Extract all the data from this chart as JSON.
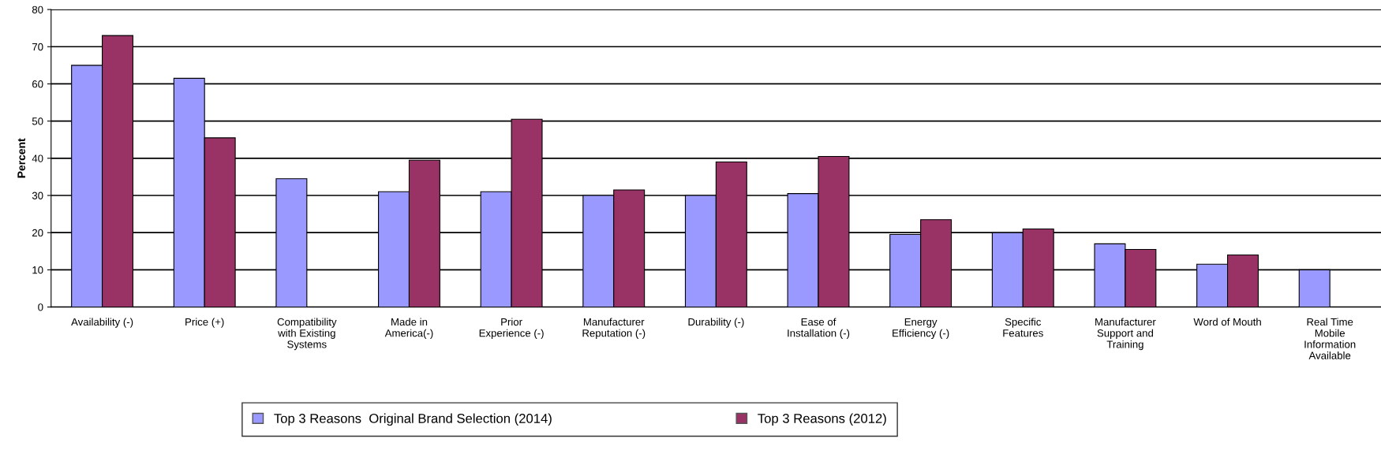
{
  "chart_data": {
    "type": "bar",
    "ylabel": "Percent",
    "categories": [
      "Availability (-)",
      "Price (+)",
      "Compatibility\nwith Existing\nSystems",
      "Made in\nAmerica(-)",
      "Prior\nExperience (-)",
      "Manufacturer\nReputation (-)",
      "Durability (-)",
      "Ease of\nInstallation (-)",
      "Energy\nEfficiency (-)",
      "Specific\nFeatures",
      "Manufacturer\nSupport and\nTraining",
      "Word of Mouth",
      "Real Time\nMobile\nInformation\nAvailable"
    ],
    "series": [
      {
        "name": "Top 3 Reasons  Original Brand Selection (2014)",
        "color": "#9999ff",
        "values": [
          65,
          61.5,
          34.5,
          31,
          31,
          30,
          30,
          30.5,
          19.5,
          20,
          17,
          11.5,
          10
        ]
      },
      {
        "name": "Top 3 Reasons (2012)",
        "color": "#993366",
        "values": [
          73,
          45.5,
          null,
          39.5,
          50.5,
          31.5,
          39,
          40.5,
          23.5,
          21,
          15.5,
          14,
          null
        ]
      }
    ],
    "ylim": [
      0,
      80
    ],
    "yticks": [
      0,
      10,
      20,
      30,
      40,
      50,
      60,
      70,
      80
    ],
    "grid": "y",
    "legend": "bottom"
  }
}
